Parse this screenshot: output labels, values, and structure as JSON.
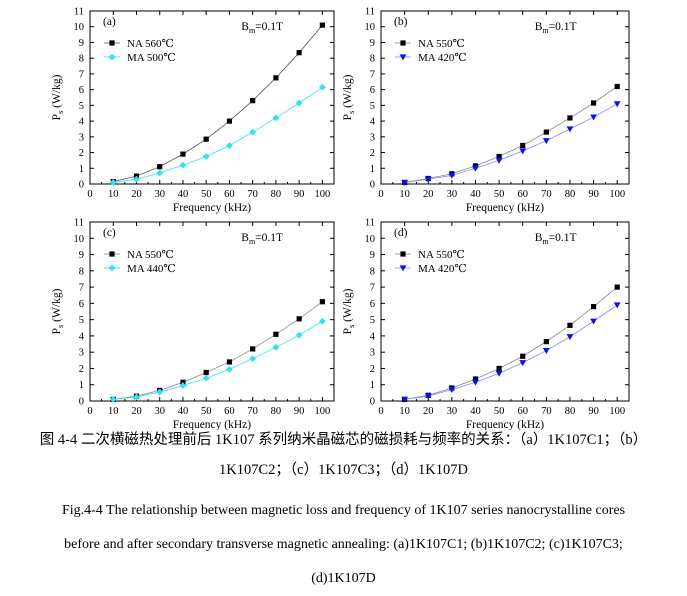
{
  "chart_data": [
    {
      "type": "line",
      "panel_label": "(a)",
      "annotation": "B",
      "annotation_sub": "m",
      "annotation_suffix": "=0.1T",
      "xlabel": "Frequency (kHz)",
      "ylabel_main": "P",
      "ylabel_sub": "s",
      "ylabel_unit": " (W/kg)",
      "xlim": [
        0,
        105
      ],
      "ylim": [
        0,
        11
      ],
      "xticks": [
        0,
        10,
        20,
        30,
        40,
        50,
        60,
        70,
        80,
        90,
        100
      ],
      "yticks": [
        0,
        1,
        2,
        3,
        4,
        5,
        6,
        7,
        8,
        9,
        10,
        11
      ],
      "x": [
        10,
        20,
        30,
        40,
        50,
        60,
        70,
        80,
        90,
        100
      ],
      "series": [
        {
          "name": "NA 560℃",
          "marker": "square",
          "color": "#000000",
          "line": "#555555",
          "values": [
            0.15,
            0.5,
            1.1,
            1.9,
            2.85,
            4.0,
            5.3,
            6.75,
            8.35,
            10.1
          ]
        },
        {
          "name": "MA 500℃",
          "marker": "diamond",
          "color": "#33e0f0",
          "line": "#33e0f0",
          "values": [
            0.1,
            0.3,
            0.7,
            1.2,
            1.75,
            2.45,
            3.3,
            4.2,
            5.15,
            6.15
          ]
        }
      ]
    },
    {
      "type": "line",
      "panel_label": "(b)",
      "annotation": "B",
      "annotation_sub": "m",
      "annotation_suffix": "=0.1T",
      "xlabel": "Frequency (kHz)",
      "ylabel_main": "P",
      "ylabel_sub": "s",
      "ylabel_unit": " (W/kg)",
      "xlim": [
        0,
        105
      ],
      "ylim": [
        0,
        11
      ],
      "xticks": [
        0,
        10,
        20,
        30,
        40,
        50,
        60,
        70,
        80,
        90,
        100
      ],
      "yticks": [
        0,
        1,
        2,
        3,
        4,
        5,
        6,
        7,
        8,
        9,
        10,
        11
      ],
      "x": [
        10,
        20,
        30,
        40,
        50,
        60,
        70,
        80,
        90,
        100
      ],
      "series": [
        {
          "name": "NA 550℃",
          "marker": "square",
          "color": "#000000",
          "line": "#888888",
          "values": [
            0.1,
            0.35,
            0.65,
            1.15,
            1.75,
            2.45,
            3.3,
            4.2,
            5.15,
            6.2
          ]
        },
        {
          "name": "MA 420℃",
          "marker": "triangle-down",
          "color": "#1010ee",
          "line": "#8888ff",
          "values": [
            0.1,
            0.3,
            0.55,
            1.0,
            1.5,
            2.1,
            2.75,
            3.5,
            4.25,
            5.1
          ]
        }
      ]
    },
    {
      "type": "line",
      "panel_label": "(c)",
      "annotation": "B",
      "annotation_sub": "m",
      "annotation_suffix": "=0.1T",
      "xlabel": "Frequency (kHz)",
      "ylabel_main": "P",
      "ylabel_sub": "s",
      "ylabel_unit": " (W/kg)",
      "xlim": [
        0,
        105
      ],
      "ylim": [
        0,
        11
      ],
      "xticks": [
        0,
        10,
        20,
        30,
        40,
        50,
        60,
        70,
        80,
        90,
        100
      ],
      "yticks": [
        0,
        1,
        2,
        3,
        4,
        5,
        6,
        7,
        8,
        9,
        10,
        11
      ],
      "x": [
        10,
        20,
        30,
        40,
        50,
        60,
        70,
        80,
        90,
        100
      ],
      "series": [
        {
          "name": "NA 550℃",
          "marker": "square",
          "color": "#000000",
          "line": "#888888",
          "values": [
            0.1,
            0.3,
            0.65,
            1.15,
            1.75,
            2.4,
            3.2,
            4.1,
            5.05,
            6.1
          ]
        },
        {
          "name": "MA 440℃",
          "marker": "diamond",
          "color": "#33e0f0",
          "line": "#33e0f0",
          "values": [
            0.1,
            0.25,
            0.55,
            0.95,
            1.4,
            1.95,
            2.6,
            3.3,
            4.05,
            4.9
          ]
        }
      ]
    },
    {
      "type": "line",
      "panel_label": "(d)",
      "annotation": "B",
      "annotation_sub": "m",
      "annotation_suffix": "=0.1T",
      "xlabel": "Frequency (kHz)",
      "ylabel_main": "P",
      "ylabel_sub": "s",
      "ylabel_unit": " (W/kg)",
      "xlim": [
        0,
        105
      ],
      "ylim": [
        0,
        11
      ],
      "xticks": [
        0,
        10,
        20,
        30,
        40,
        50,
        60,
        70,
        80,
        90,
        100
      ],
      "yticks": [
        0,
        1,
        2,
        3,
        4,
        5,
        6,
        7,
        8,
        9,
        10,
        11
      ],
      "x": [
        10,
        20,
        30,
        40,
        50,
        60,
        70,
        80,
        90,
        100
      ],
      "series": [
        {
          "name": "NA 550℃",
          "marker": "square",
          "color": "#000000",
          "line": "#888888",
          "values": [
            0.1,
            0.35,
            0.8,
            1.35,
            2.0,
            2.75,
            3.65,
            4.65,
            5.8,
            7.0
          ]
        },
        {
          "name": "MA 420℃",
          "marker": "triangle-down",
          "color": "#1010ee",
          "line": "#8888ff",
          "values": [
            0.1,
            0.3,
            0.7,
            1.15,
            1.7,
            2.35,
            3.1,
            3.95,
            4.9,
            5.9
          ]
        }
      ]
    }
  ],
  "caption": {
    "zh_line1": "图 4-4  二次横磁热处理前后 1K107 系列纳米晶磁芯的磁损耗与频率的关系：（a）1K107C1；（b）",
    "zh_line2": "1K107C2；（c）1K107C3；（d）1K107D",
    "en_line1": "Fig.4-4 The relationship between magnetic loss and frequency of 1K107 series nanocrystalline cores",
    "en_line2": "before and after secondary transverse magnetic annealing: (a)1K107C1; (b)1K107C2; (c)1K107C3;",
    "en_line3": "(d)1K107D"
  }
}
